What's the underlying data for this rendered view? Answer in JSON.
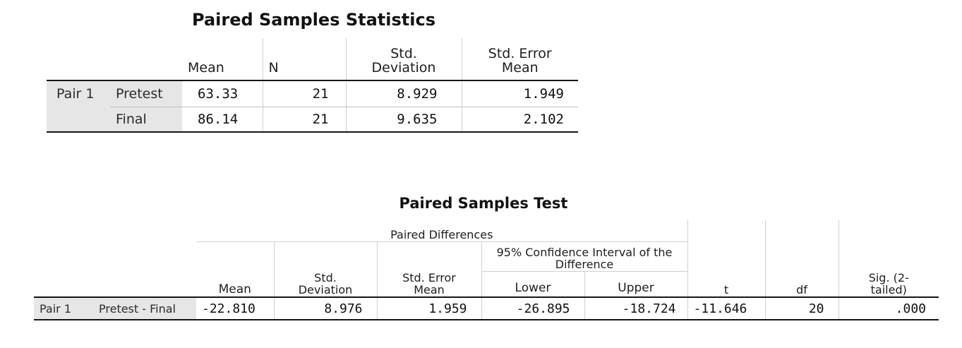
{
  "statistics": {
    "title": "Paired Samples Statistics",
    "columns": [
      "Mean",
      "N",
      "Std. Deviation",
      "Std. Error Mean"
    ],
    "pair_label": "Pair 1",
    "rows": [
      {
        "label": "Pretest",
        "mean": "63.33",
        "n": "21",
        "sd": "8.929",
        "se": "1.949"
      },
      {
        "label": "Final",
        "mean": "86.14",
        "n": "21",
        "sd": "9.635",
        "se": "2.102"
      }
    ]
  },
  "test": {
    "title": "Paired Samples Test",
    "group_header": "Paired Differences",
    "ci_header": "95% Confidence Interval of the Difference",
    "columns": {
      "mean": "Mean",
      "sd": "Std. Deviation",
      "se": "Std. Error Mean",
      "lower": "Lower",
      "upper": "Upper",
      "t": "t",
      "df": "df",
      "sig": "Sig. (2-tailed)"
    },
    "row": {
      "pair": "Pair 1",
      "label": "Pretest - Final",
      "mean": "-22.810",
      "sd": "8.976",
      "se": "1.959",
      "lower": "-26.895",
      "upper": "-18.724",
      "t": "-11.646",
      "df": "20",
      "sig": ".000"
    }
  }
}
